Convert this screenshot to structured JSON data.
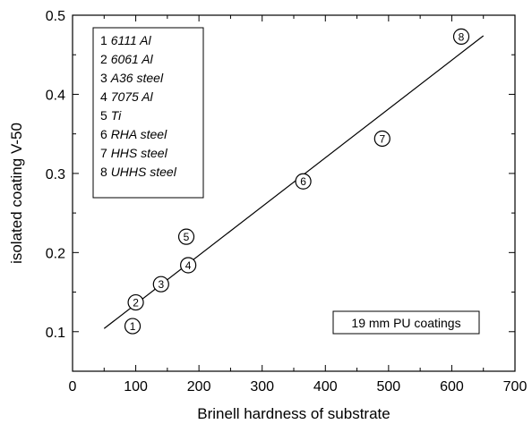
{
  "chart_data": {
    "type": "scatter",
    "title": "",
    "xlabel": "Brinell hardness of substrate",
    "ylabel": "isolated coating V-50",
    "xlim": [
      0,
      700
    ],
    "ylim": [
      0.05,
      0.5
    ],
    "x_ticks": [
      0,
      100,
      200,
      300,
      400,
      500,
      600,
      700
    ],
    "y_ticks": [
      0.1,
      0.2,
      0.3,
      0.4,
      0.5
    ],
    "grid": false,
    "legend_position": "top-left",
    "points": [
      {
        "id": "1",
        "label": "6111 Al",
        "x": 95,
        "y": 0.107
      },
      {
        "id": "2",
        "label": "6061 Al",
        "x": 100,
        "y": 0.137
      },
      {
        "id": "3",
        "label": "A36 steel",
        "x": 140,
        "y": 0.16
      },
      {
        "id": "4",
        "label": "7075 Al",
        "x": 183,
        "y": 0.184
      },
      {
        "id": "5",
        "label": "Ti",
        "x": 180,
        "y": 0.22
      },
      {
        "id": "6",
        "label": "RHA steel",
        "x": 365,
        "y": 0.29
      },
      {
        "id": "7",
        "label": "HHS steel",
        "x": 490,
        "y": 0.344
      },
      {
        "id": "8",
        "label": "UHHS steel",
        "x": 615,
        "y": 0.473
      }
    ],
    "fit_line": {
      "x1": 50,
      "y1": 0.104,
      "x2": 650,
      "y2": 0.474
    },
    "annotation": "19 mm PU coatings"
  }
}
